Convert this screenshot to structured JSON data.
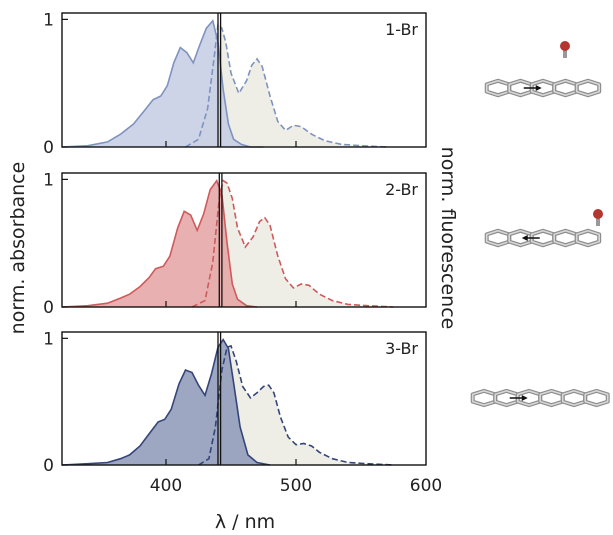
{
  "figure": {
    "xlabel": "λ / nm",
    "ylabel_left": "norm. absorbance",
    "ylabel_right": "norm. fluorescence"
  },
  "chart_data": [
    {
      "type": "area",
      "panel_label": "1-Br",
      "xlim": [
        320,
        600
      ],
      "ylim": [
        0,
        1.05
      ],
      "y_ticks": [
        "0",
        "1"
      ],
      "vertical_lines_nm": [
        440,
        442
      ],
      "absorbance_color": "#7f93c0",
      "absorbance_fill": "#c4cde3",
      "fluorescence_color": "#7f93c0",
      "fluorescence_fill": "#eeeee6",
      "series": [
        {
          "name": "absorbance",
          "x": [
            320,
            340,
            355,
            365,
            375,
            383,
            390,
            396,
            401,
            406,
            411,
            416,
            421,
            426,
            431,
            436,
            440,
            444,
            448,
            452,
            458,
            465,
            475
          ],
          "values": [
            0.0,
            0.01,
            0.04,
            0.1,
            0.18,
            0.28,
            0.37,
            0.4,
            0.48,
            0.66,
            0.78,
            0.74,
            0.66,
            0.8,
            0.93,
            0.99,
            0.82,
            0.45,
            0.18,
            0.06,
            0.02,
            0.0,
            0.0
          ]
        },
        {
          "name": "fluorescence",
          "x": [
            415,
            425,
            432,
            437,
            440,
            443,
            446,
            450,
            456,
            462,
            466,
            470,
            474,
            480,
            486,
            492,
            498,
            504,
            512,
            522,
            535,
            550,
            570
          ],
          "values": [
            0.0,
            0.06,
            0.3,
            0.7,
            0.96,
            0.93,
            0.82,
            0.58,
            0.42,
            0.52,
            0.64,
            0.69,
            0.63,
            0.4,
            0.2,
            0.13,
            0.17,
            0.16,
            0.1,
            0.05,
            0.02,
            0.01,
            0.0
          ]
        }
      ]
    },
    {
      "type": "area",
      "panel_label": "2-Br",
      "xlim": [
        320,
        600
      ],
      "ylim": [
        0,
        1.05
      ],
      "y_ticks": [
        "0",
        "1"
      ],
      "vertical_lines_nm": [
        441,
        443
      ],
      "absorbance_color": "#cf5a5c",
      "absorbance_fill": "#e4a2a2",
      "fluorescence_color": "#cf5a5c",
      "fluorescence_fill": "#eeeee6",
      "series": [
        {
          "name": "absorbance",
          "x": [
            320,
            340,
            355,
            365,
            372,
            380,
            387,
            392,
            398,
            403,
            409,
            414,
            419,
            424,
            429,
            434,
            439,
            443,
            447,
            451,
            455,
            462,
            470
          ],
          "values": [
            0.0,
            0.01,
            0.03,
            0.07,
            0.1,
            0.16,
            0.23,
            0.3,
            0.32,
            0.4,
            0.62,
            0.75,
            0.72,
            0.6,
            0.73,
            0.92,
            0.99,
            0.88,
            0.5,
            0.18,
            0.06,
            0.01,
            0.0
          ]
        },
        {
          "name": "fluorescence",
          "x": [
            420,
            430,
            436,
            441,
            444,
            447,
            451,
            455,
            461,
            467,
            472,
            476,
            480,
            486,
            492,
            498,
            504,
            510,
            518,
            528,
            540,
            555,
            575
          ],
          "values": [
            0.0,
            0.05,
            0.35,
            0.85,
            0.99,
            0.97,
            0.85,
            0.62,
            0.47,
            0.55,
            0.67,
            0.7,
            0.64,
            0.4,
            0.22,
            0.15,
            0.18,
            0.17,
            0.1,
            0.05,
            0.02,
            0.01,
            0.0
          ]
        }
      ]
    },
    {
      "type": "area",
      "panel_label": "3-Br",
      "xlim": [
        320,
        600
      ],
      "ylim": [
        0,
        1.05
      ],
      "y_ticks": [
        "0",
        "1"
      ],
      "x_ticks": [
        400,
        500,
        600
      ],
      "vertical_lines_nm": [
        440,
        442
      ],
      "absorbance_color": "#34457a",
      "absorbance_fill": "#8c98b7",
      "fluorescence_color": "#34457a",
      "fluorescence_fill": "#eeeee6",
      "series": [
        {
          "name": "absorbance",
          "x": [
            320,
            340,
            355,
            365,
            372,
            380,
            388,
            394,
            399,
            404,
            410,
            415,
            420,
            425,
            430,
            435,
            440,
            444,
            448,
            452,
            457,
            463,
            470,
            480
          ],
          "values": [
            0.0,
            0.01,
            0.02,
            0.05,
            0.08,
            0.15,
            0.26,
            0.34,
            0.36,
            0.44,
            0.64,
            0.75,
            0.73,
            0.63,
            0.55,
            0.72,
            0.93,
            0.99,
            0.92,
            0.65,
            0.3,
            0.08,
            0.02,
            0.0
          ]
        },
        {
          "name": "fluorescence",
          "x": [
            425,
            433,
            438,
            443,
            447,
            450,
            454,
            459,
            465,
            470,
            475,
            479,
            483,
            488,
            494,
            500,
            506,
            512,
            518,
            528,
            540,
            555,
            575
          ],
          "values": [
            0.0,
            0.05,
            0.3,
            0.75,
            0.93,
            0.94,
            0.82,
            0.62,
            0.53,
            0.57,
            0.62,
            0.63,
            0.57,
            0.38,
            0.22,
            0.16,
            0.17,
            0.15,
            0.1,
            0.05,
            0.02,
            0.01,
            0.0
          ]
        }
      ]
    }
  ]
}
